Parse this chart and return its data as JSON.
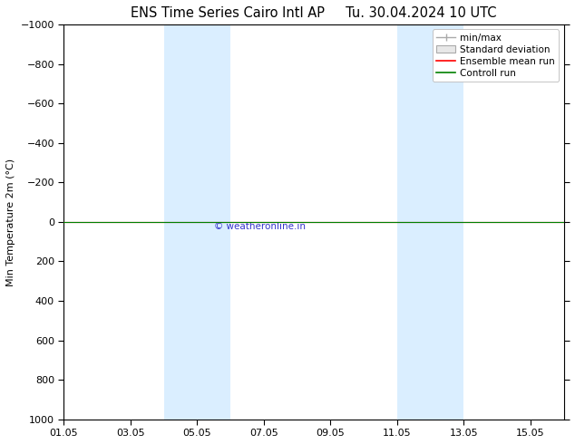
{
  "title": "ENS Time Series Cairo Intl AP",
  "title2": "Tu. 30.04.2024 10 UTC",
  "ylabel": "Min Temperature 2m (°C)",
  "ylim_top": -1000,
  "ylim_bottom": 1000,
  "yticks": [
    -1000,
    -800,
    -600,
    -400,
    -200,
    0,
    200,
    400,
    600,
    800,
    1000
  ],
  "xlim": [
    0,
    15
  ],
  "xtick_positions": [
    0,
    2,
    4,
    6,
    8,
    10,
    12,
    14
  ],
  "xtick_labels": [
    "01.05",
    "03.05",
    "05.05",
    "07.05",
    "09.05",
    "11.05",
    "13.05",
    "15.05"
  ],
  "shaded_bands": [
    {
      "x_start": 3.0,
      "x_end": 5.0
    },
    {
      "x_start": 10.0,
      "x_end": 12.0
    }
  ],
  "band_color": "#daeeff",
  "band_alpha": 1.0,
  "line_y": 0,
  "green_color": "#008000",
  "red_color": "#ff0000",
  "gray_color": "#aaaaaa",
  "legend_labels": [
    "min/max",
    "Standard deviation",
    "Ensemble mean run",
    "Controll run"
  ],
  "watermark": "© weatheronline.in",
  "watermark_color": "#3333cc",
  "bg_color": "#ffffff",
  "title_fontsize": 10.5,
  "axis_label_fontsize": 8,
  "tick_fontsize": 8,
  "legend_fontsize": 7.5
}
